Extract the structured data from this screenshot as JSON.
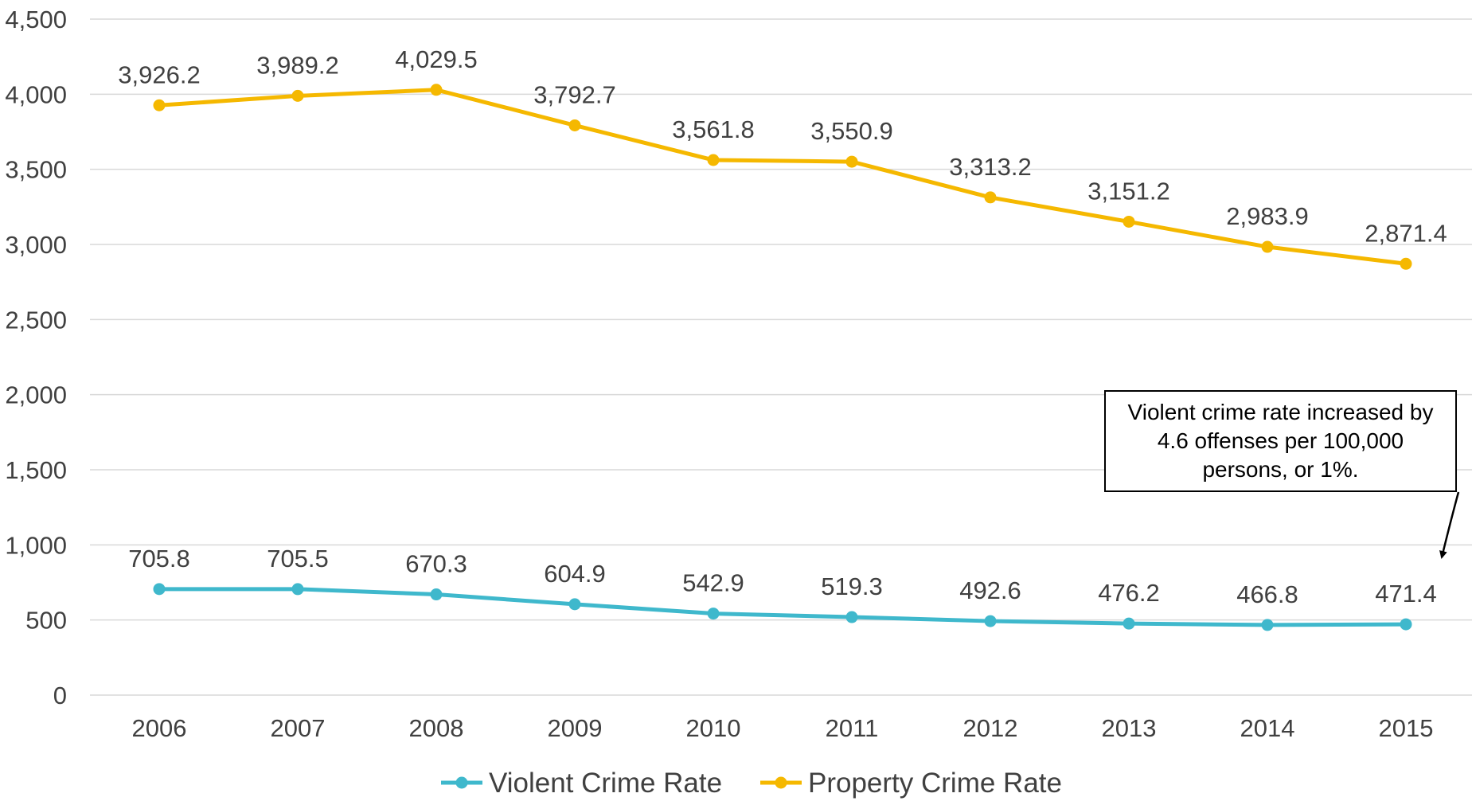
{
  "chart_data": {
    "type": "line",
    "title": "",
    "xlabel": "",
    "ylabel": "",
    "categories": [
      "2006",
      "2007",
      "2008",
      "2009",
      "2010",
      "2011",
      "2012",
      "2013",
      "2014",
      "2015"
    ],
    "ylim": [
      0,
      4500
    ],
    "yticks": [
      0,
      500,
      1000,
      1500,
      2000,
      2500,
      3000,
      3500,
      4000,
      4500
    ],
    "ytick_labels": [
      "0",
      "500",
      "1,000",
      "1,500",
      "2,000",
      "2,500",
      "3,000",
      "3,500",
      "4,000",
      "4,500"
    ],
    "grid": true,
    "legend_position": "bottom",
    "series": [
      {
        "name": "Violent Crime Rate",
        "color": "#3fb8cc",
        "values": [
          705.8,
          705.5,
          670.3,
          604.9,
          542.9,
          519.3,
          492.6,
          476.2,
          466.8,
          471.4
        ],
        "labels": [
          "705.8",
          "705.5",
          "670.3",
          "604.9",
          "542.9",
          "519.3",
          "492.6",
          "476.2",
          "466.8",
          "471.4"
        ]
      },
      {
        "name": "Property Crime Rate",
        "color": "#f5b800",
        "values": [
          3926.2,
          3989.2,
          4029.5,
          3792.7,
          3561.8,
          3550.9,
          3313.2,
          3151.2,
          2983.9,
          2871.4
        ],
        "labels": [
          "3,926.2",
          "3,989.2",
          "4,029.5",
          "3,792.7",
          "3,561.8",
          "3,550.9",
          "3,313.2",
          "3,151.2",
          "2,983.9",
          "2,871.4"
        ]
      }
    ],
    "annotation": {
      "text": "Violent crime rate increased by 4.6 offenses per 100,000 persons, or 1%.",
      "target_category": "2015",
      "target_series": "Violent Crime Rate"
    }
  }
}
